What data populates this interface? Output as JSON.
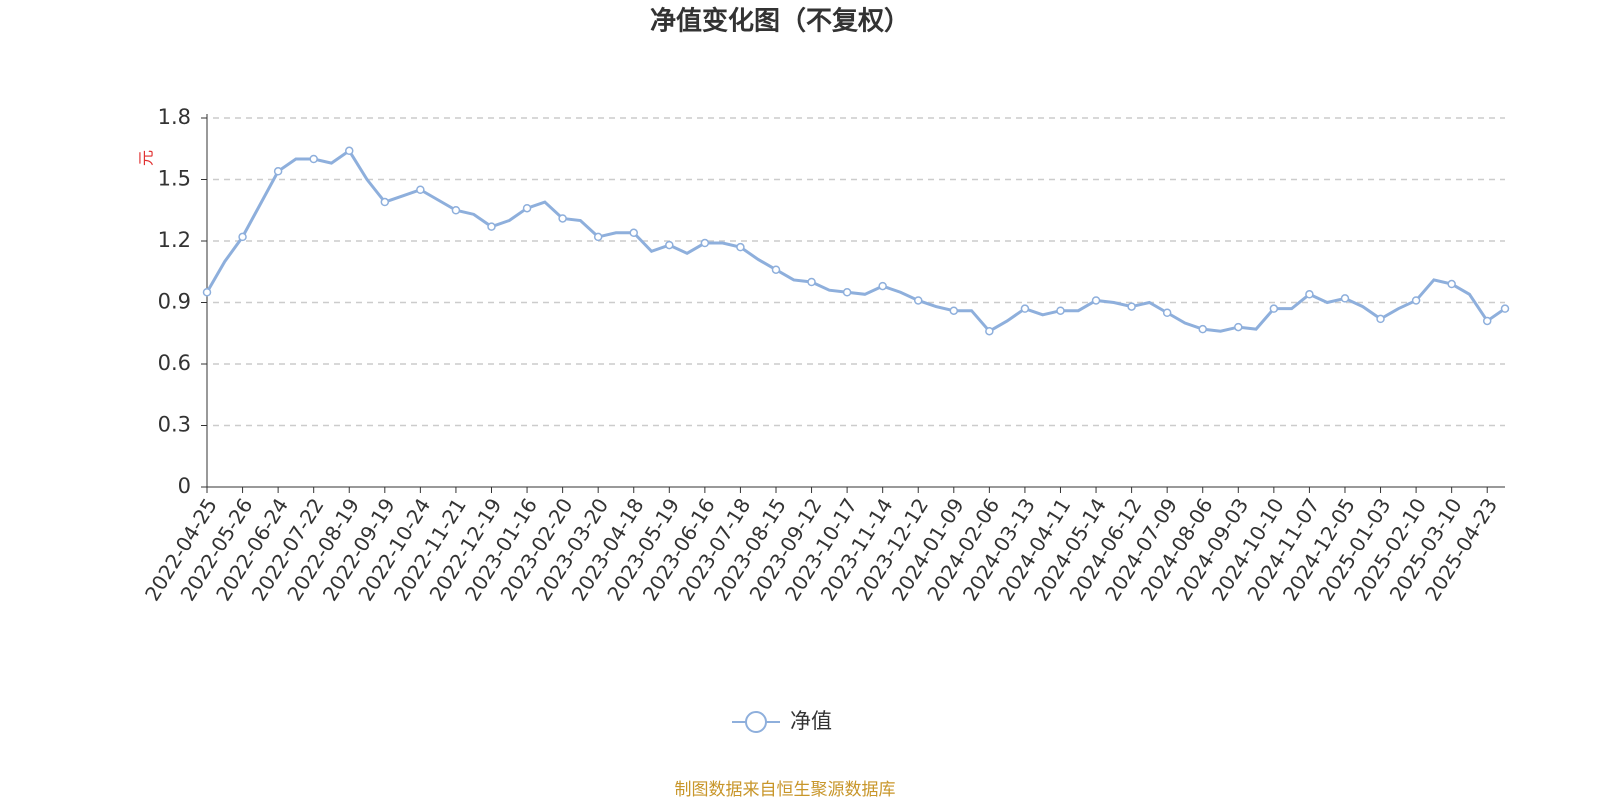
{
  "chart_data": {
    "type": "line",
    "title": "净值变化图（不复权）",
    "y_label": "元",
    "source": "制图数据来自恒生聚源数据库",
    "categories": [
      "2022-04-25",
      null,
      "2022-05-26",
      null,
      "2022-06-24",
      null,
      "2022-07-22",
      null,
      "2022-08-19",
      null,
      "2022-09-19",
      null,
      "2022-10-24",
      null,
      "2022-11-21",
      null,
      "2022-12-19",
      null,
      "2023-01-16",
      null,
      "2023-02-20",
      null,
      "2023-03-20",
      null,
      "2023-04-18",
      null,
      "2023-05-19",
      null,
      "2023-06-16",
      null,
      "2023-07-18",
      null,
      "2023-08-15",
      null,
      "2023-09-12",
      null,
      "2023-10-17",
      null,
      "2023-11-14",
      null,
      "2023-12-12",
      null,
      "2024-01-09",
      null,
      "2024-02-06",
      null,
      "2024-03-13",
      null,
      "2024-04-11",
      null,
      "2024-05-14",
      null,
      "2024-06-12",
      null,
      "2024-07-09",
      null,
      "2024-08-06",
      null,
      "2024-09-03",
      null,
      "2024-10-10",
      null,
      "2024-11-07",
      null,
      "2024-12-05",
      null,
      "2025-01-03",
      null,
      "2025-02-10",
      null,
      "2025-03-10",
      null,
      "2025-04-23",
      null
    ],
    "series": [
      {
        "name": "净值",
        "color": "#8eafdc",
        "values": [
          0.95,
          1.1,
          1.22,
          1.38,
          1.54,
          1.6,
          1.6,
          1.58,
          1.64,
          1.5,
          1.39,
          1.42,
          1.45,
          1.4,
          1.35,
          1.33,
          1.27,
          1.3,
          1.36,
          1.39,
          1.31,
          1.3,
          1.22,
          1.24,
          1.24,
          1.15,
          1.18,
          1.14,
          1.19,
          1.19,
          1.17,
          1.11,
          1.06,
          1.01,
          1.0,
          0.96,
          0.95,
          0.94,
          0.98,
          0.95,
          0.91,
          0.88,
          0.86,
          0.86,
          0.76,
          0.81,
          0.87,
          0.84,
          0.86,
          0.86,
          0.91,
          0.9,
          0.88,
          0.9,
          0.85,
          0.8,
          0.77,
          0.76,
          0.78,
          0.77,
          0.87,
          0.87,
          0.94,
          0.9,
          0.92,
          0.88,
          0.82,
          0.87,
          0.91,
          1.01,
          0.99,
          0.94,
          0.81,
          0.87
        ]
      }
    ],
    "ylim": [
      0,
      1.8
    ],
    "yticks": [
      0,
      0.3,
      0.6,
      0.9,
      1.2,
      1.5,
      1.8
    ],
    "grid": true
  }
}
